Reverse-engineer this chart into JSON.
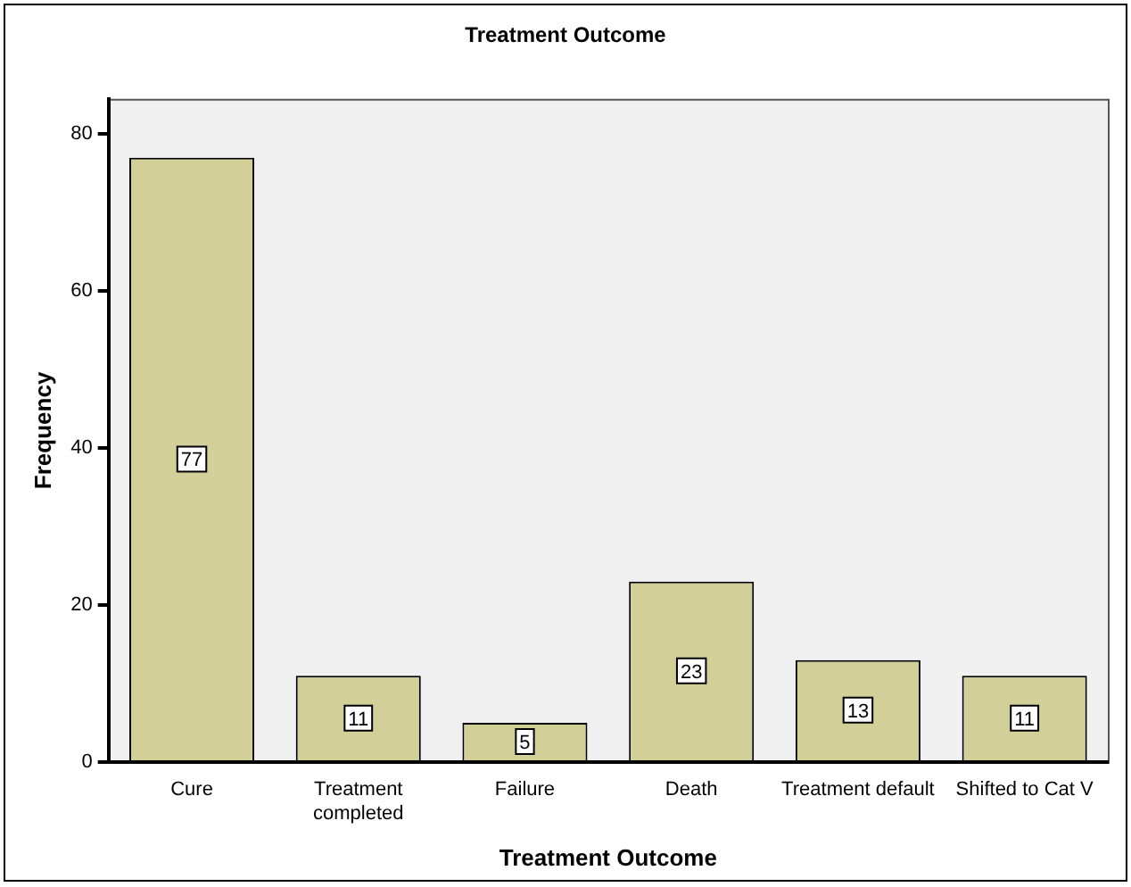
{
  "chart_data": {
    "type": "bar",
    "title": "Treatment Outcome",
    "xlabel": "Treatment Outcome",
    "ylabel": "Frequency",
    "categories": [
      "Cure",
      "Treatment completed",
      "Failure",
      "Death",
      "Treatment default",
      "Shifted to Cat V"
    ],
    "values": [
      77,
      11,
      5,
      23,
      13,
      11
    ],
    "color": "#d3cf99",
    "ylim": [
      0,
      84.5
    ],
    "yticks": [
      0,
      20,
      40,
      60,
      80
    ],
    "grid": false,
    "legend": false,
    "data_labels": true
  }
}
